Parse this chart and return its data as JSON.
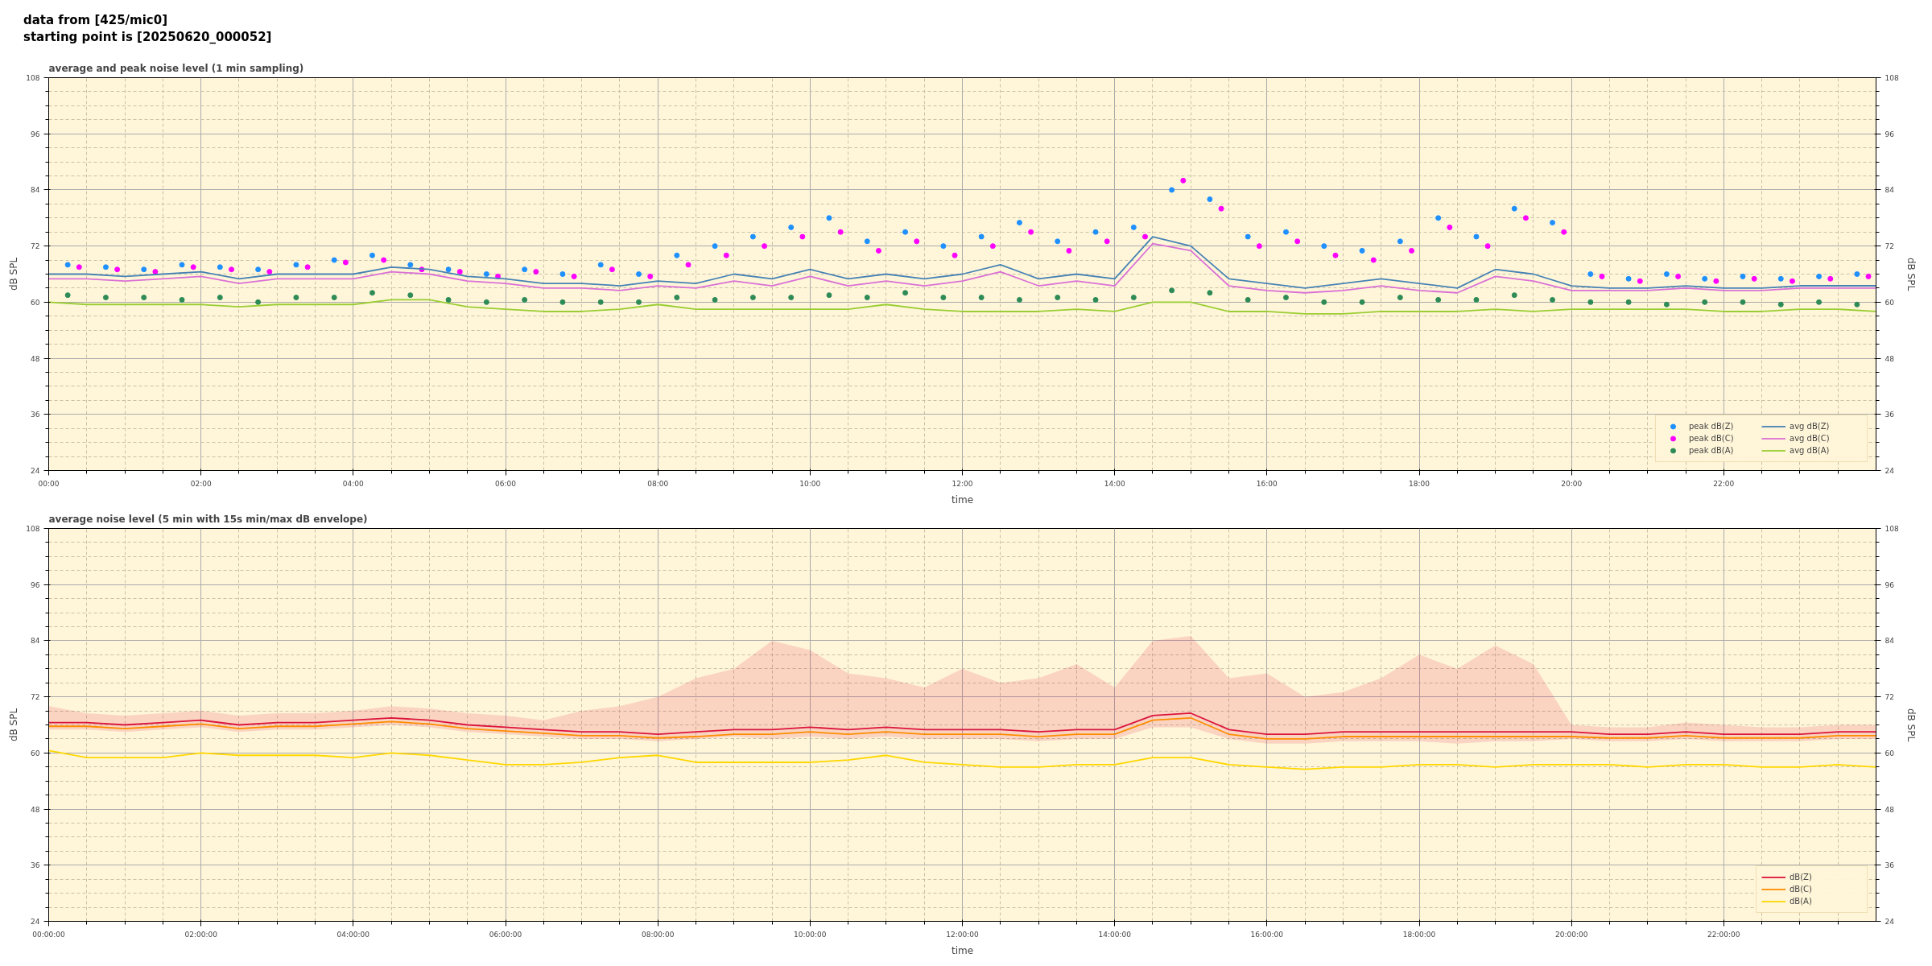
{
  "chart_data": [
    {
      "type": "line",
      "title": "average and peak noise level (1 min sampling)",
      "annotations": [
        "data from [425/mic0]",
        "starting point is [20250620_000052]"
      ],
      "xlabel": "time",
      "ylabel": "dB SPL",
      "y2label": "dB SPL",
      "xlim": [
        0,
        24
      ],
      "ylim": [
        24,
        108
      ],
      "y2lim": [
        24,
        108
      ],
      "xticks": [
        {
          "value": 0,
          "label": "00:00"
        },
        {
          "value": 2,
          "label": "02:00"
        },
        {
          "value": 4,
          "label": "04:00"
        },
        {
          "value": 6,
          "label": "06:00"
        },
        {
          "value": 8,
          "label": "08:00"
        },
        {
          "value": 10,
          "label": "10:00"
        },
        {
          "value": 12,
          "label": "12:00"
        },
        {
          "value": 14,
          "label": "14:00"
        },
        {
          "value": 16,
          "label": "16:00"
        },
        {
          "value": 18,
          "label": "18:00"
        },
        {
          "value": 20,
          "label": "20:00"
        },
        {
          "value": 22,
          "label": "22:00"
        }
      ],
      "yticks": [
        24,
        36,
        48,
        60,
        72,
        84,
        96,
        108
      ],
      "y2ticks": [
        24,
        36,
        48,
        60,
        72,
        84,
        96,
        108
      ],
      "grid": true,
      "legend": "bottom right",
      "line_style": "solid",
      "series": [
        {
          "name": "peak dB(Z)",
          "type": "scatter",
          "marker": "circle",
          "color": "#1e90ff",
          "x": [
            0.25,
            0.75,
            1.25,
            1.75,
            2.25,
            2.75,
            3.25,
            3.75,
            4.25,
            4.75,
            5.25,
            5.75,
            6.25,
            6.75,
            7.25,
            7.75,
            8.25,
            8.75,
            9.25,
            9.75,
            10.25,
            10.75,
            11.25,
            11.75,
            12.25,
            12.75,
            13.25,
            13.75,
            14.25,
            14.75,
            15.25,
            15.75,
            16.25,
            16.75,
            17.25,
            17.75,
            18.25,
            18.75,
            19.25,
            19.75,
            20.25,
            20.75,
            21.25,
            21.75,
            22.25,
            22.75,
            23.25,
            23.75
          ],
          "values": [
            68,
            67.5,
            67,
            68,
            67.5,
            67,
            68,
            69,
            70,
            68,
            67,
            66,
            67,
            66,
            68,
            66,
            70,
            72,
            74,
            76,
            78,
            73,
            75,
            72,
            74,
            77,
            73,
            75,
            76,
            84,
            82,
            74,
            75,
            72,
            71,
            73,
            78,
            74,
            80,
            77,
            66,
            65,
            66,
            65,
            65.5,
            65,
            65.5,
            66
          ]
        },
        {
          "name": "peak dB(C)",
          "type": "scatter",
          "marker": "circle",
          "color": "#ff00ff",
          "x": [
            0.4,
            0.9,
            1.4,
            1.9,
            2.4,
            2.9,
            3.4,
            3.9,
            4.4,
            4.9,
            5.4,
            5.9,
            6.4,
            6.9,
            7.4,
            7.9,
            8.4,
            8.9,
            9.4,
            9.9,
            10.4,
            10.9,
            11.4,
            11.9,
            12.4,
            12.9,
            13.4,
            13.9,
            14.4,
            14.9,
            15.4,
            15.9,
            16.4,
            16.9,
            17.4,
            17.9,
            18.4,
            18.9,
            19.4,
            19.9,
            20.4,
            20.9,
            21.4,
            21.9,
            22.4,
            22.9,
            23.4,
            23.9
          ],
          "values": [
            67.5,
            67,
            66.5,
            67.5,
            67,
            66.5,
            67.5,
            68.5,
            69,
            67,
            66.5,
            65.5,
            66.5,
            65.5,
            67,
            65.5,
            68,
            70,
            72,
            74,
            75,
            71,
            73,
            70,
            72,
            75,
            71,
            73,
            74,
            86,
            80,
            72,
            73,
            70,
            69,
            71,
            76,
            72,
            78,
            75,
            65.5,
            64.5,
            65.5,
            64.5,
            65,
            64.5,
            65,
            65.5
          ]
        },
        {
          "name": "peak dB(A)",
          "type": "scatter",
          "marker": "circle",
          "color": "#2e8b57",
          "x": [
            0.25,
            0.75,
            1.25,
            1.75,
            2.25,
            2.75,
            3.25,
            3.75,
            4.25,
            4.75,
            5.25,
            5.75,
            6.25,
            6.75,
            7.25,
            7.75,
            8.25,
            8.75,
            9.25,
            9.75,
            10.25,
            10.75,
            11.25,
            11.75,
            12.25,
            12.75,
            13.25,
            13.75,
            14.25,
            14.75,
            15.25,
            15.75,
            16.25,
            16.75,
            17.25,
            17.75,
            18.25,
            18.75,
            19.25,
            19.75,
            20.25,
            20.75,
            21.25,
            21.75,
            22.25,
            22.75,
            23.25,
            23.75
          ],
          "values": [
            61.5,
            61,
            61,
            60.5,
            61,
            60,
            61,
            61,
            62,
            61.5,
            60.5,
            60,
            60.5,
            60,
            60,
            60,
            61,
            60.5,
            61,
            61,
            61.5,
            61,
            62,
            61,
            61,
            60.5,
            61,
            60.5,
            61,
            62.5,
            62,
            60.5,
            61,
            60,
            60,
            61,
            60.5,
            60.5,
            61.5,
            60.5,
            60,
            60,
            59.5,
            60,
            60,
            59.5,
            60,
            59.5
          ]
        },
        {
          "name": "avg dB(Z)",
          "type": "line",
          "color": "#4682b4",
          "x": [
            0,
            0.5,
            1,
            1.5,
            2,
            2.5,
            3,
            3.5,
            4,
            4.5,
            5,
            5.5,
            6,
            6.5,
            7,
            7.5,
            8,
            8.5,
            9,
            9.5,
            10,
            10.5,
            11,
            11.5,
            12,
            12.5,
            13,
            13.5,
            14,
            14.5,
            15,
            15.5,
            16,
            16.5,
            17,
            17.5,
            18,
            18.5,
            19,
            19.5,
            20,
            20.5,
            21,
            21.5,
            22,
            22.5,
            23,
            23.5,
            24
          ],
          "values": [
            66,
            66,
            65.5,
            66,
            66.5,
            65,
            66,
            66,
            66,
            67.5,
            67,
            65.5,
            65,
            64,
            64,
            63.5,
            64.5,
            64,
            66,
            65,
            67,
            65,
            66,
            65,
            66,
            68,
            65,
            66,
            65,
            74,
            72,
            65,
            64,
            63,
            64,
            65,
            64,
            63,
            67,
            66,
            63.5,
            63,
            63,
            63.5,
            63,
            63,
            63.5,
            63.5,
            63.5
          ]
        },
        {
          "name": "avg dB(C)",
          "type": "line",
          "color": "#da70d6",
          "x": [
            0,
            0.5,
            1,
            1.5,
            2,
            2.5,
            3,
            3.5,
            4,
            4.5,
            5,
            5.5,
            6,
            6.5,
            7,
            7.5,
            8,
            8.5,
            9,
            9.5,
            10,
            10.5,
            11,
            11.5,
            12,
            12.5,
            13,
            13.5,
            14,
            14.5,
            15,
            15.5,
            16,
            16.5,
            17,
            17.5,
            18,
            18.5,
            19,
            19.5,
            20,
            20.5,
            21,
            21.5,
            22,
            22.5,
            23,
            23.5,
            24
          ],
          "values": [
            65,
            65,
            64.5,
            65,
            65.5,
            64,
            65,
            65,
            65,
            66.5,
            66,
            64.5,
            64,
            63,
            63,
            62.5,
            63.5,
            63,
            64.5,
            63.5,
            65.5,
            63.5,
            64.5,
            63.5,
            64.5,
            66.5,
            63.5,
            64.5,
            63.5,
            72.5,
            71,
            63.5,
            62.5,
            62,
            62.5,
            63.5,
            62.5,
            62,
            65.5,
            64.5,
            62.5,
            62.5,
            62.5,
            63,
            62.5,
            62.5,
            63,
            63,
            63
          ]
        },
        {
          "name": "avg dB(A)",
          "type": "line",
          "color": "#9acd32",
          "x": [
            0,
            0.5,
            1,
            1.5,
            2,
            2.5,
            3,
            3.5,
            4,
            4.5,
            5,
            5.5,
            6,
            6.5,
            7,
            7.5,
            8,
            8.5,
            9,
            9.5,
            10,
            10.5,
            11,
            11.5,
            12,
            12.5,
            13,
            13.5,
            14,
            14.5,
            15,
            15.5,
            16,
            16.5,
            17,
            17.5,
            18,
            18.5,
            19,
            19.5,
            20,
            20.5,
            21,
            21.5,
            22,
            22.5,
            23,
            23.5,
            24
          ],
          "values": [
            60,
            59.5,
            59.5,
            59.5,
            59.5,
            59,
            59.5,
            59.5,
            59.5,
            60.5,
            60.5,
            59,
            58.5,
            58,
            58,
            58.5,
            59.5,
            58.5,
            58.5,
            58.5,
            58.5,
            58.5,
            59.5,
            58.5,
            58,
            58,
            58,
            58.5,
            58,
            60,
            60,
            58,
            58,
            57.5,
            57.5,
            58,
            58,
            58,
            58.5,
            58,
            58.5,
            58.5,
            58.5,
            58.5,
            58,
            58,
            58.5,
            58.5,
            58
          ]
        }
      ]
    },
    {
      "type": "line",
      "title": "average noise level (5 min with 15s min/max dB envelope)",
      "xlabel": "time",
      "ylabel": "dB SPL",
      "y2label": "dB SPL",
      "xlim": [
        0,
        24
      ],
      "ylim": [
        24,
        108
      ],
      "y2lim": [
        24,
        108
      ],
      "xticks": [
        {
          "value": 0,
          "label": "00:00:00"
        },
        {
          "value": 2,
          "label": "02:00:00"
        },
        {
          "value": 4,
          "label": "04:00:00"
        },
        {
          "value": 6,
          "label": "06:00:00"
        },
        {
          "value": 8,
          "label": "08:00:00"
        },
        {
          "value": 10,
          "label": "10:00:00"
        },
        {
          "value": 12,
          "label": "12:00:00"
        },
        {
          "value": 14,
          "label": "14:00:00"
        },
        {
          "value": 16,
          "label": "16:00:00"
        },
        {
          "value": 18,
          "label": "18:00:00"
        },
        {
          "value": 20,
          "label": "20:00:00"
        },
        {
          "value": 22,
          "label": "22:00:00"
        }
      ],
      "yticks": [
        24,
        36,
        48,
        60,
        72,
        84,
        96,
        108
      ],
      "y2ticks": [
        24,
        36,
        48,
        60,
        72,
        84,
        96,
        108
      ],
      "grid": true,
      "legend": "bottom right",
      "line_style": "solid",
      "x": [
        0,
        0.5,
        1,
        1.5,
        2,
        2.5,
        3,
        3.5,
        4,
        4.5,
        5,
        5.5,
        6,
        6.5,
        7,
        7.5,
        8,
        8.5,
        9,
        9.5,
        10,
        10.5,
        11,
        11.5,
        12,
        12.5,
        13,
        13.5,
        14,
        14.5,
        15,
        15.5,
        16,
        16.5,
        17,
        17.5,
        18,
        18.5,
        19,
        19.5,
        20,
        20.5,
        21,
        21.5,
        22,
        22.5,
        23,
        23.5,
        24
      ],
      "series": [
        {
          "name": "dB(Z)",
          "color": "#dc143c",
          "values": [
            66.5,
            66.5,
            66,
            66.5,
            67,
            66,
            66.5,
            66.5,
            67,
            67.5,
            67,
            66,
            65.5,
            65,
            64.5,
            64.5,
            64,
            64.5,
            65,
            65,
            65.5,
            65,
            65.5,
            65,
            65,
            65,
            64.5,
            65,
            65,
            68,
            68.5,
            65,
            64,
            64,
            64.5,
            64.5,
            64.5,
            64.5,
            64.5,
            64.5,
            64.5,
            64,
            64,
            64.5,
            64,
            64,
            64,
            64.5,
            64.5
          ],
          "lower": [
            65,
            65,
            64.5,
            65,
            65.5,
            64.5,
            65,
            65,
            65.5,
            66,
            65.5,
            64.5,
            64,
            63.5,
            63,
            63,
            62.5,
            63,
            63.5,
            63,
            63.5,
            63,
            63.5,
            63,
            63,
            63,
            62.5,
            63,
            63,
            65.5,
            65.5,
            63,
            62,
            62,
            62.5,
            62.5,
            62.5,
            62,
            62.5,
            62.5,
            63,
            62.5,
            62.5,
            63,
            62.5,
            62.5,
            62.5,
            63,
            63
          ],
          "upper": [
            70,
            68.5,
            68,
            68.5,
            69,
            68,
            68.5,
            68.5,
            69,
            70,
            69.5,
            68.5,
            68,
            67,
            69,
            70,
            72,
            76,
            78,
            84,
            82,
            77,
            76,
            74,
            78,
            75,
            76,
            79,
            74,
            84,
            85,
            76,
            77,
            72,
            73,
            76,
            81,
            78,
            83,
            79,
            66,
            65.5,
            65.5,
            66.5,
            66,
            65.5,
            65.5,
            66,
            66
          ]
        },
        {
          "name": "dB(C)",
          "color": "#ff8c00",
          "values": [
            65.7,
            65.7,
            65.2,
            65.7,
            66.2,
            65.2,
            65.7,
            65.7,
            66.2,
            66.7,
            66.2,
            65.2,
            64.7,
            64.2,
            63.7,
            63.7,
            63.2,
            63.5,
            64,
            64,
            64.5,
            64,
            64.5,
            64,
            64,
            64,
            63.5,
            64,
            64,
            67,
            67.5,
            64,
            63,
            63,
            63.5,
            63.5,
            63.5,
            63.5,
            63.5,
            63.5,
            63.5,
            63.2,
            63.2,
            63.7,
            63.2,
            63.2,
            63.2,
            63.7,
            63.7
          ]
        },
        {
          "name": "dB(A)",
          "color": "#ffd700",
          "values": [
            60.5,
            59,
            59,
            59,
            60,
            59.5,
            59.5,
            59.5,
            59,
            60,
            59.5,
            58.5,
            57.5,
            57.5,
            58,
            59,
            59.5,
            58,
            58,
            58,
            58,
            58.5,
            59.5,
            58,
            57.5,
            57,
            57,
            57.5,
            57.5,
            59,
            59,
            57.5,
            57,
            56.5,
            57,
            57,
            57.5,
            57.5,
            57,
            57.5,
            57.5,
            57.5,
            57,
            57.5,
            57.5,
            57,
            57,
            57.5,
            57
          ]
        }
      ]
    }
  ]
}
